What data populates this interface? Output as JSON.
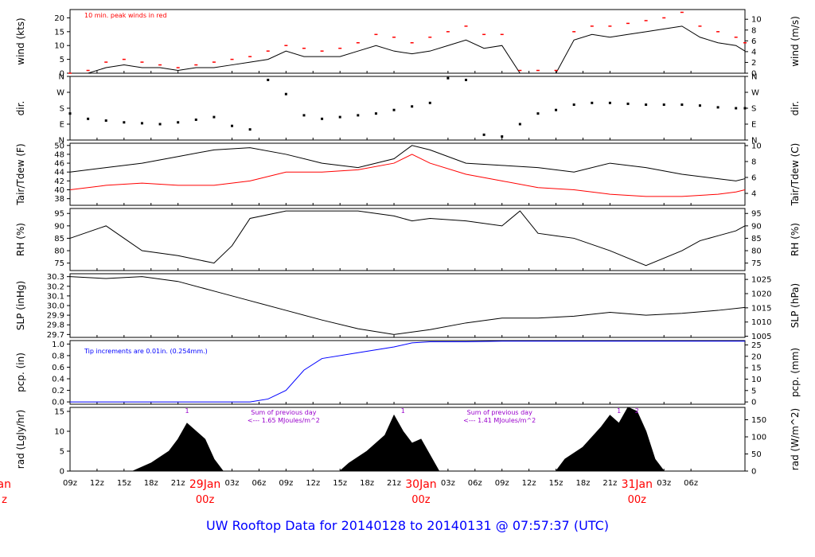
{
  "title": "UW Rooftop Data for 20140128  to  20140131 @ 07:57:37  (UTC)",
  "colors": {
    "line": "#000000",
    "red": "#ff0000",
    "blue": "#0000ff",
    "purple": "#9900cc",
    "title": "#0000ff",
    "date": "#ff0000"
  },
  "chart_data": [
    {
      "id": "wind",
      "type": "line",
      "ylabel_left": "wind (kts)",
      "ylabel_right": "wind (m/s)",
      "ylim": [
        0,
        23
      ],
      "yticks_left": [
        "0",
        "5",
        "10",
        "15",
        "20"
      ],
      "yticks_left_values": [
        0,
        5,
        10,
        15,
        20
      ],
      "ylim_right": [
        0,
        11.8
      ],
      "yticks_right": [
        "0",
        "2",
        "4",
        "6",
        "8",
        "10"
      ],
      "yticks_right_values": [
        0,
        2,
        4,
        6,
        8,
        10
      ],
      "annotation": "10 min. peak winds in red",
      "series": [
        {
          "name": "wind",
          "color": "black",
          "x": [
            0,
            2,
            4,
            6,
            8,
            10,
            12,
            14,
            16,
            18,
            20,
            22,
            24,
            26,
            28,
            30,
            32,
            34,
            36,
            38,
            40,
            42,
            44,
            46,
            48,
            50,
            52,
            54,
            56,
            58,
            60,
            62,
            64,
            66,
            68,
            70,
            72,
            74,
            75
          ],
          "values": [
            0,
            0,
            2,
            3,
            2,
            2,
            1,
            2,
            2,
            3,
            4,
            5,
            8,
            6,
            6,
            6,
            8,
            10,
            8,
            7,
            8,
            10,
            12,
            9,
            10,
            0,
            0,
            0,
            12,
            14,
            13,
            14,
            15,
            16,
            17,
            13,
            11,
            10,
            8
          ]
        },
        {
          "name": "10 min. peak",
          "color": "red",
          "x": [
            0,
            2,
            4,
            6,
            8,
            10,
            12,
            14,
            16,
            18,
            20,
            22,
            24,
            26,
            28,
            30,
            32,
            34,
            36,
            38,
            40,
            42,
            44,
            46,
            48,
            50,
            52,
            54,
            56,
            58,
            60,
            62,
            64,
            66,
            68,
            70,
            72,
            74,
            75
          ],
          "values": [
            0,
            1,
            4,
            5,
            4,
            3,
            2,
            3,
            4,
            5,
            6,
            8,
            10,
            9,
            8,
            9,
            11,
            14,
            13,
            11,
            13,
            15,
            17,
            14,
            14,
            1,
            1,
            1,
            15,
            17,
            17,
            18,
            19,
            20,
            22,
            17,
            15,
            13,
            11
          ]
        }
      ]
    },
    {
      "id": "dir",
      "type": "scatter",
      "ylabel_left": "dir.",
      "ylabel_right": "dir.",
      "ylim": [
        0,
        360
      ],
      "yticks_left": [
        "N",
        "E",
        "S",
        "W",
        "N"
      ],
      "yticks_left_values": [
        0,
        90,
        180,
        270,
        360
      ],
      "yticks_right": [
        "N",
        "E",
        "S",
        "W",
        "N"
      ],
      "yticks_right_values": [
        0,
        90,
        180,
        270,
        360
      ],
      "series": [
        {
          "name": "wind direction",
          "color": "black",
          "x": [
            0,
            2,
            4,
            6,
            8,
            10,
            12,
            14,
            16,
            18,
            20,
            22,
            24,
            26,
            28,
            30,
            32,
            34,
            36,
            38,
            40,
            42,
            44,
            46,
            48,
            50,
            52,
            54,
            56,
            58,
            60,
            62,
            64,
            66,
            68,
            70,
            72,
            74,
            75
          ],
          "values": [
            150,
            120,
            110,
            100,
            95,
            90,
            100,
            115,
            130,
            80,
            60,
            340,
            260,
            140,
            120,
            130,
            140,
            150,
            170,
            190,
            210,
            350,
            340,
            30,
            20,
            90,
            150,
            170,
            200,
            210,
            210,
            205,
            200,
            200,
            200,
            195,
            185,
            180,
            180
          ]
        }
      ]
    },
    {
      "id": "temp",
      "type": "line",
      "ylabel_left": "Tair/Tdew (F)",
      "ylabel_right": "Tair/Tdew (C)",
      "ylim": [
        36.5,
        50.5
      ],
      "yticks_left": [
        "38",
        "40",
        "42",
        "44",
        "46",
        "48",
        "50"
      ],
      "yticks_left_values": [
        38,
        40,
        42,
        44,
        46,
        48,
        50
      ],
      "ylim_right": [
        2.5,
        10.3
      ],
      "yticks_right": [
        "4",
        "6",
        "8",
        "10"
      ],
      "yticks_right_values": [
        4,
        6,
        8,
        10
      ],
      "series": [
        {
          "name": "Tair",
          "color": "black",
          "x": [
            0,
            4,
            8,
            12,
            16,
            20,
            24,
            28,
            32,
            36,
            38,
            40,
            44,
            48,
            52,
            56,
            60,
            64,
            68,
            72,
            74,
            75
          ],
          "values": [
            44,
            45,
            46,
            47.5,
            49,
            49.5,
            48,
            46,
            45,
            47,
            50,
            49,
            46,
            45.5,
            45,
            44,
            46,
            45,
            43.5,
            42.5,
            42,
            42.5
          ]
        },
        {
          "name": "Tdew",
          "color": "red",
          "x": [
            0,
            4,
            8,
            12,
            16,
            20,
            24,
            28,
            32,
            36,
            38,
            40,
            44,
            48,
            52,
            56,
            60,
            64,
            68,
            72,
            74,
            75
          ],
          "values": [
            40,
            41,
            41.5,
            41,
            41,
            42,
            44,
            44,
            44.5,
            46,
            48,
            46,
            43.5,
            42,
            40.5,
            40,
            39,
            38.5,
            38.5,
            39,
            39.5,
            40
          ]
        }
      ]
    },
    {
      "id": "rh",
      "type": "line",
      "ylabel_left": "RH (%)",
      "ylabel_right": "RH (%)",
      "ylim": [
        72,
        97
      ],
      "yticks_left": [
        "75",
        "80",
        "85",
        "90",
        "95"
      ],
      "yticks_left_values": [
        75,
        80,
        85,
        90,
        95
      ],
      "yticks_right": [
        "75",
        "80",
        "85",
        "90",
        "95"
      ],
      "yticks_right_values": [
        75,
        80,
        85,
        90,
        95
      ],
      "series": [
        {
          "name": "RH",
          "color": "black",
          "x": [
            0,
            4,
            6,
            8,
            12,
            16,
            18,
            20,
            24,
            28,
            32,
            36,
            38,
            40,
            44,
            48,
            50,
            52,
            54,
            56,
            60,
            64,
            68,
            70,
            72,
            74,
            75
          ],
          "values": [
            85,
            90,
            85,
            80,
            78,
            75,
            82,
            93,
            96,
            96,
            96,
            94,
            92,
            93,
            92,
            90,
            96,
            87,
            86,
            85,
            80,
            74,
            80,
            84,
            86,
            88,
            90
          ]
        }
      ]
    },
    {
      "id": "slp",
      "type": "line",
      "ylabel_left": "SLP (inHg)",
      "ylabel_right": "SLP (hPa)",
      "ylim": [
        29.67,
        30.33
      ],
      "yticks_left": [
        "29.7",
        "29.8",
        "29.9",
        "30.0",
        "30.1",
        "30.2",
        "30.3"
      ],
      "yticks_left_values": [
        29.7,
        29.8,
        29.9,
        30.0,
        30.1,
        30.2,
        30.3
      ],
      "ylim_right": [
        1004.6,
        1027.0
      ],
      "yticks_right": [
        "1005",
        "1010",
        "1015",
        "1020",
        "1025"
      ],
      "yticks_right_values": [
        1005,
        1010,
        1015,
        1020,
        1025
      ],
      "series": [
        {
          "name": "SLP",
          "color": "black",
          "x": [
            0,
            4,
            8,
            12,
            16,
            20,
            24,
            28,
            32,
            36,
            40,
            44,
            48,
            52,
            56,
            60,
            64,
            68,
            72,
            75
          ],
          "values": [
            30.3,
            30.28,
            30.3,
            30.25,
            30.15,
            30.05,
            29.95,
            29.85,
            29.76,
            29.7,
            29.75,
            29.82,
            29.87,
            29.87,
            29.89,
            29.93,
            29.9,
            29.92,
            29.95,
            29.98
          ]
        }
      ]
    },
    {
      "id": "pcp",
      "type": "line",
      "ylabel_left": "pcp. (in)",
      "ylabel_right": "pcp. (mm)",
      "ylim": [
        -0.04,
        1.06
      ],
      "yticks_left": [
        "0.0",
        "0.2",
        "0.4",
        "0.6",
        "0.8",
        "1.0"
      ],
      "yticks_left_values": [
        0,
        0.2,
        0.4,
        0.6,
        0.8,
        1.0
      ],
      "ylim_right": [
        -1.0,
        26.9
      ],
      "yticks_right": [
        "0",
        "5",
        "10",
        "15",
        "20",
        "25"
      ],
      "yticks_right_values": [
        0,
        5,
        10,
        15,
        20,
        25
      ],
      "annotation": "Tip increments are 0.01in. (0.254mm.)",
      "series": [
        {
          "name": "precip",
          "color": "blue",
          "x": [
            0,
            10,
            20,
            22,
            24,
            26,
            28,
            32,
            36,
            38,
            40,
            44,
            48,
            52,
            56,
            60,
            64,
            68,
            72,
            75
          ],
          "values": [
            0,
            0,
            0,
            0.05,
            0.2,
            0.55,
            0.75,
            0.85,
            0.95,
            1.02,
            1.04,
            1.04,
            1.05,
            1.05,
            1.05,
            1.05,
            1.05,
            1.05,
            1.05,
            1.05
          ]
        }
      ]
    },
    {
      "id": "rad",
      "type": "area",
      "ylabel_left": "rad (Lgly/hr)",
      "ylabel_right": "rad (W/m^2)",
      "ylim": [
        0,
        16
      ],
      "yticks_left": [
        "0",
        "5",
        "10",
        "15"
      ],
      "yticks_left_values": [
        0,
        5,
        10,
        15
      ],
      "ylim_right": [
        0,
        186
      ],
      "yticks_right": [
        "0",
        "50",
        "100",
        "150"
      ],
      "yticks_right_values": [
        0,
        50,
        100,
        150
      ],
      "annotations": [
        {
          "text": "Sum of previous day",
          "x": 24
        },
        {
          "text": "<--- 1.65 MJoules/m^2",
          "x": 24
        },
        {
          "text": "Sum of previous day",
          "x": 48
        },
        {
          "text": "<--- 1.41 MJoules/m^2",
          "x": 48
        }
      ],
      "markers": [
        {
          "text": "1",
          "x": 13
        },
        {
          "text": "1",
          "x": 37
        },
        {
          "text": "1",
          "x": 61
        },
        {
          "text": "2",
          "x": 63
        }
      ],
      "series": [
        {
          "name": "solar radiation",
          "color": "black",
          "x": [
            7,
            9,
            11,
            12,
            13,
            14,
            15,
            16,
            17,
            30,
            31,
            33,
            35,
            36,
            37,
            38,
            39,
            40,
            41,
            42,
            54,
            55,
            57,
            59,
            60,
            61,
            62,
            63,
            64,
            65,
            66
          ],
          "values": [
            0,
            2,
            5,
            8,
            12,
            10,
            8,
            3,
            0,
            0,
            2,
            5,
            9,
            14,
            10,
            7,
            8,
            4,
            0,
            0,
            0,
            3,
            6,
            11,
            14,
            12,
            16,
            15,
            10,
            3,
            0
          ]
        }
      ]
    }
  ],
  "x_axis": {
    "range_hours": [
      0,
      75
    ],
    "ticks": [
      {
        "label": "09z",
        "h": 0
      },
      {
        "label": "12z",
        "h": 3
      },
      {
        "label": "15z",
        "h": 6
      },
      {
        "label": "18z",
        "h": 9
      },
      {
        "label": "21z",
        "h": 12
      },
      {
        "label": "03z",
        "h": 18
      },
      {
        "label": "06z",
        "h": 21
      },
      {
        "label": "09z",
        "h": 24
      },
      {
        "label": "12z",
        "h": 27
      },
      {
        "label": "15z",
        "h": 30
      },
      {
        "label": "18z",
        "h": 33
      },
      {
        "label": "21z",
        "h": 36
      },
      {
        "label": "03z",
        "h": 42
      },
      {
        "label": "06z",
        "h": 45
      },
      {
        "label": "09z",
        "h": 48
      },
      {
        "label": "12z",
        "h": 51
      },
      {
        "label": "15z",
        "h": 54
      },
      {
        "label": "18z",
        "h": 57
      },
      {
        "label": "21z",
        "h": 60
      },
      {
        "label": "03z",
        "h": 66
      },
      {
        "label": "06z",
        "h": 69
      }
    ],
    "dates": [
      {
        "date": "29Jan",
        "hour": "00z",
        "h": 15
      },
      {
        "date": "30Jan",
        "hour": "00z",
        "h": 39
      },
      {
        "date": "31Jan",
        "hour": "00z",
        "h": 63
      }
    ],
    "edge_date": "Jan",
    "edge_hour": "z"
  }
}
